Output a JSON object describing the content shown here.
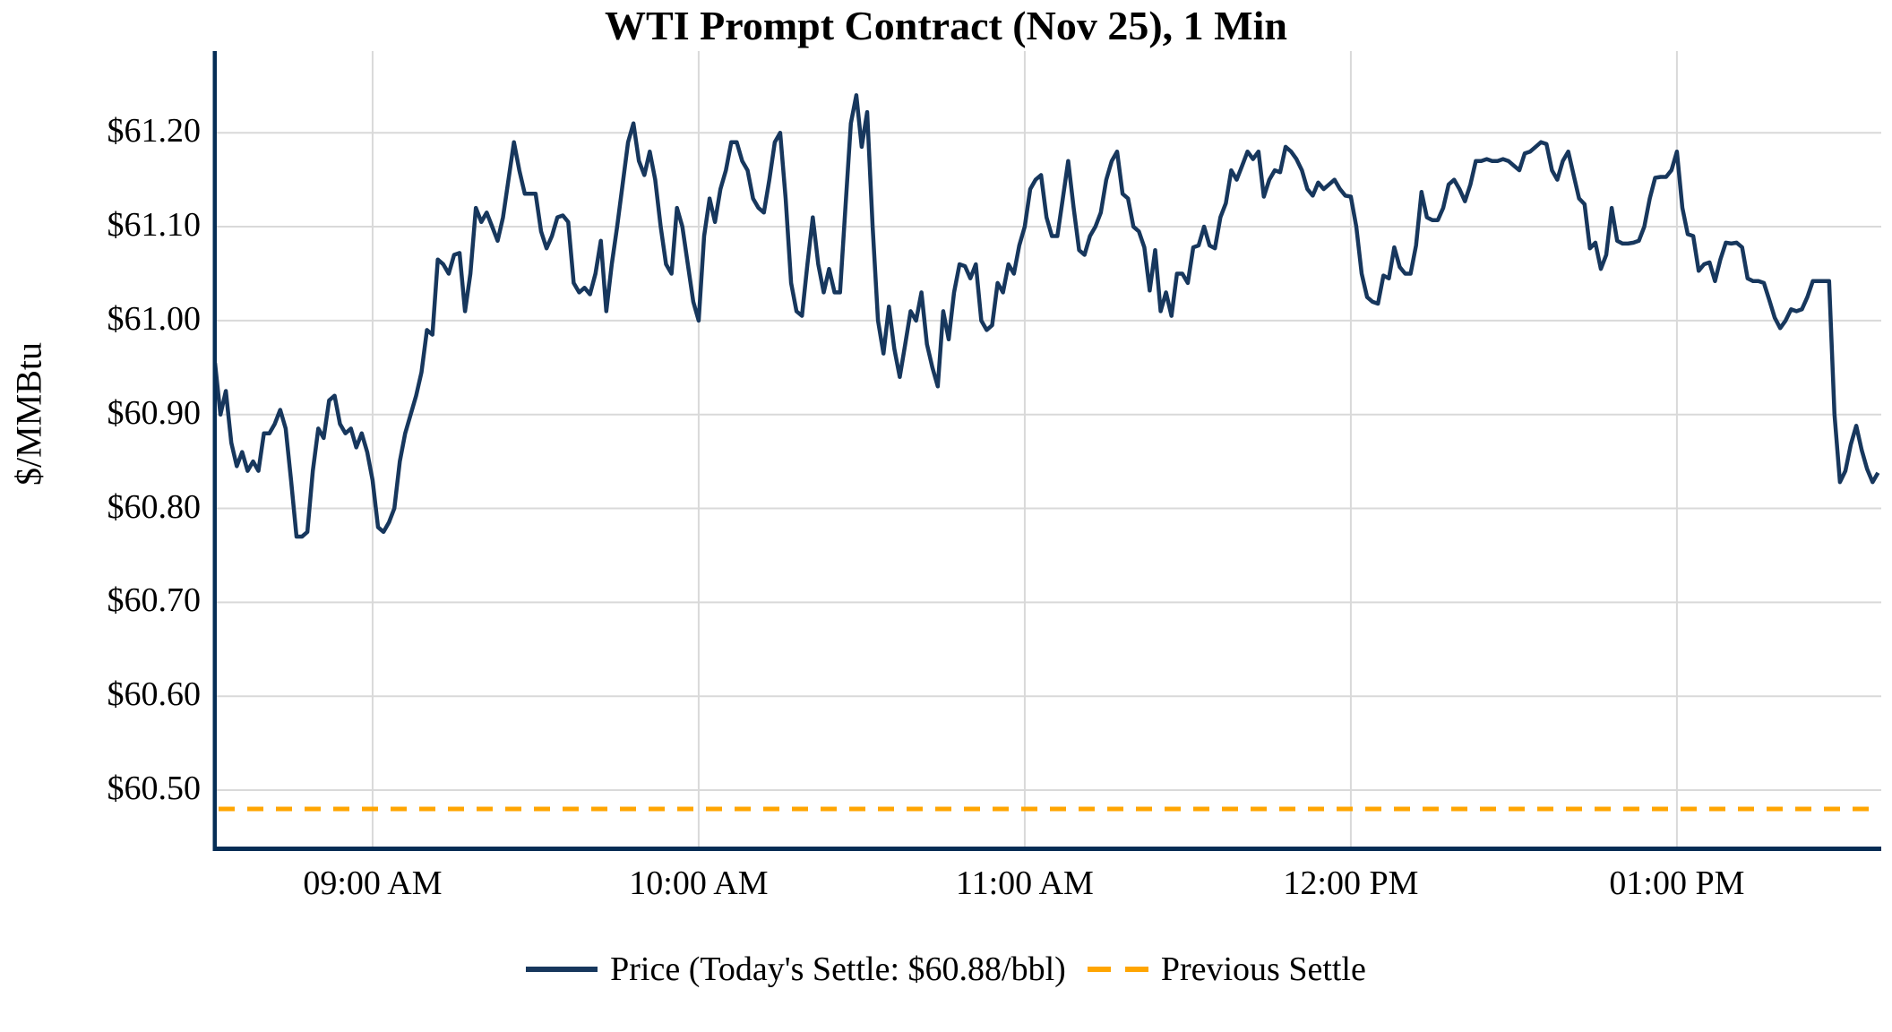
{
  "page": {
    "title": "WTI Prompt Contract (Nov 25), 1 Min"
  },
  "chart_data": {
    "type": "line",
    "title": "WTI Prompt Contract (Nov 25), 1 Min",
    "xlabel": "",
    "ylabel": "$/MMBtu",
    "grid": true,
    "legend_position": "bottom",
    "today_settle_label": "$60.88/bbl",
    "colors": {
      "price_line": "#17375d",
      "previous_settle_line": "#ffa500",
      "gridline": "#d9d9d9",
      "axis_spine": "#052d55",
      "text": "#000000"
    },
    "ylim": [
      60.439,
      61.287
    ],
    "xlim_minutes": [
      0,
      306.6
    ],
    "x_axis": {
      "start_time": "08:31 AM",
      "end_time": "01:37 PM",
      "interval_minutes": 1,
      "ticks": [
        {
          "minute": 29,
          "label": "09:00 AM"
        },
        {
          "minute": 89,
          "label": "10:00 AM"
        },
        {
          "minute": 149,
          "label": "11:00 AM"
        },
        {
          "minute": 209,
          "label": "12:00 PM"
        },
        {
          "minute": 269,
          "label": "01:00 PM"
        }
      ]
    },
    "y_axis": {
      "ticks": [
        {
          "value": 60.5,
          "label": "$60.50"
        },
        {
          "value": 60.6,
          "label": "$60.60"
        },
        {
          "value": 60.7,
          "label": "$60.70"
        },
        {
          "value": 60.8,
          "label": "$60.80"
        },
        {
          "value": 60.9,
          "label": "$60.90"
        },
        {
          "value": 61.0,
          "label": "$61.00"
        },
        {
          "value": 61.1,
          "label": "$61.10"
        },
        {
          "value": 61.2,
          "label": "$61.20"
        }
      ]
    },
    "series": [
      {
        "name": "Price (Today's Settle: $60.88/bbl)",
        "color": "#17375d",
        "style": "solid",
        "start_time": "08:31 AM",
        "interval_minutes": 1,
        "prices": [
          60.955,
          60.9,
          60.925,
          60.87,
          60.845,
          60.86,
          60.84,
          60.85,
          60.84,
          60.88,
          60.88,
          60.89,
          60.905,
          60.885,
          60.83,
          60.77,
          60.77,
          60.775,
          60.84,
          60.885,
          60.875,
          60.915,
          60.92,
          60.89,
          60.88,
          60.885,
          60.865,
          60.88,
          60.86,
          60.83,
          60.78,
          60.775,
          60.785,
          60.8,
          60.85,
          60.88,
          60.9,
          60.92,
          60.945,
          60.99,
          60.985,
          61.065,
          61.06,
          61.05,
          61.07,
          61.072,
          61.01,
          61.05,
          61.12,
          61.105,
          61.115,
          61.1,
          61.085,
          61.11,
          61.15,
          61.19,
          61.16,
          61.135,
          61.135,
          61.135,
          61.095,
          61.077,
          61.09,
          61.11,
          61.112,
          61.105,
          61.04,
          61.03,
          61.035,
          61.028,
          61.05,
          61.085,
          61.01,
          61.06,
          61.1,
          61.145,
          61.19,
          61.21,
          61.17,
          61.155,
          61.18,
          61.15,
          61.1,
          61.06,
          61.05,
          61.12,
          61.1,
          61.06,
          61.02,
          61.0,
          61.09,
          61.13,
          61.105,
          61.14,
          61.16,
          61.19,
          61.19,
          61.17,
          61.16,
          61.13,
          61.12,
          61.115,
          61.15,
          61.19,
          61.2,
          61.13,
          61.04,
          61.01,
          61.005,
          61.06,
          61.11,
          61.06,
          61.03,
          61.055,
          61.03,
          61.03,
          61.12,
          61.21,
          61.24,
          61.185,
          61.222,
          61.1,
          61.0,
          60.965,
          61.015,
          60.97,
          60.94,
          60.975,
          61.01,
          61.0,
          61.03,
          60.975,
          60.95,
          60.93,
          61.01,
          60.98,
          61.03,
          61.06,
          61.058,
          61.045,
          61.06,
          61.0,
          60.99,
          60.995,
          61.04,
          61.03,
          61.06,
          61.05,
          61.08,
          61.1,
          61.14,
          61.15,
          61.155,
          61.11,
          61.09,
          61.09,
          61.13,
          61.17,
          61.12,
          61.075,
          61.07,
          61.09,
          61.1,
          61.115,
          61.15,
          61.17,
          61.18,
          61.135,
          61.13,
          61.1,
          61.095,
          61.078,
          61.032,
          61.075,
          61.01,
          61.03,
          61.005,
          61.05,
          61.05,
          61.04,
          61.078,
          61.08,
          61.1,
          61.08,
          61.077,
          61.11,
          61.125,
          61.16,
          61.15,
          61.165,
          61.18,
          61.172,
          61.18,
          61.132,
          61.15,
          61.16,
          61.158,
          61.185,
          61.18,
          61.172,
          61.16,
          61.14,
          61.133,
          61.147,
          61.14,
          61.145,
          61.15,
          61.14,
          61.133,
          61.132,
          61.1,
          61.05,
          61.025,
          61.02,
          61.018,
          61.048,
          61.045,
          61.078,
          61.057,
          61.05,
          61.05,
          61.08,
          61.137,
          61.11,
          61.107,
          61.107,
          61.12,
          61.145,
          61.15,
          61.14,
          61.127,
          61.145,
          61.17,
          61.17,
          61.172,
          61.17,
          61.17,
          61.172,
          61.17,
          61.165,
          61.16,
          61.178,
          61.18,
          61.185,
          61.19,
          61.188,
          61.16,
          61.15,
          61.17,
          61.18,
          61.155,
          61.13,
          61.124,
          61.077,
          61.083,
          61.055,
          61.07,
          61.12,
          61.085,
          61.082,
          61.082,
          61.083,
          61.085,
          61.1,
          61.13,
          61.152,
          61.153,
          61.153,
          61.16,
          61.18,
          61.12,
          61.092,
          61.09,
          61.053,
          61.06,
          61.062,
          61.042,
          61.065,
          61.083,
          61.082,
          61.083,
          61.078,
          61.045,
          61.042,
          61.042,
          61.04,
          61.022,
          61.003,
          60.992,
          61.0,
          61.012,
          61.01,
          61.012,
          61.025,
          61.042,
          61.042,
          61.042,
          61.042,
          60.9,
          60.828,
          60.84,
          60.868,
          60.888,
          60.862,
          60.842,
          60.828,
          60.838
        ]
      },
      {
        "name": "Previous Settle",
        "color": "#ffa500",
        "style": "dashed",
        "value": 60.48
      }
    ]
  }
}
